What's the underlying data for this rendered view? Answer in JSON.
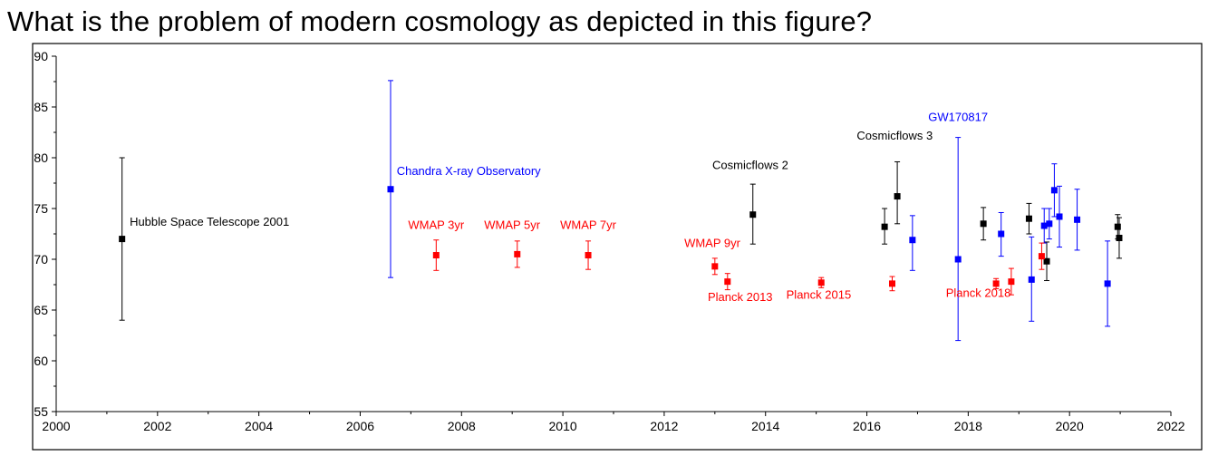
{
  "question": "What is the problem of modern cosmology as depicted in this figure?",
  "colors": {
    "black": "#000000",
    "blue": "#0000ff",
    "red": "#ff0000"
  },
  "chart_data": {
    "type": "scatter",
    "title": "",
    "xlabel": "",
    "ylabel": "",
    "xlim": [
      2000,
      2022
    ],
    "ylim": [
      55,
      90
    ],
    "x_ticks": [
      2000,
      2002,
      2004,
      2006,
      2008,
      2010,
      2012,
      2014,
      2016,
      2018,
      2020,
      2022
    ],
    "y_ticks": [
      55,
      60,
      65,
      70,
      75,
      80,
      85,
      90
    ],
    "grid": false,
    "series": [
      {
        "color": "#000000",
        "points": [
          {
            "x": 2001.3,
            "y": 72.0,
            "lo": 64.0,
            "hi": 80.0
          },
          {
            "x": 2013.75,
            "y": 74.4,
            "lo": 71.5,
            "hi": 77.4
          },
          {
            "x": 2016.35,
            "y": 73.2,
            "lo": 71.5,
            "hi": 75.0
          },
          {
            "x": 2016.6,
            "y": 76.2,
            "lo": 73.5,
            "hi": 79.6
          },
          {
            "x": 2018.3,
            "y": 73.5,
            "lo": 71.9,
            "hi": 75.1
          },
          {
            "x": 2019.2,
            "y": 74.0,
            "lo": 72.5,
            "hi": 75.5
          },
          {
            "x": 2019.55,
            "y": 69.8,
            "lo": 67.9,
            "hi": 71.7
          },
          {
            "x": 2020.95,
            "y": 73.2,
            "lo": 72.0,
            "hi": 74.4
          },
          {
            "x": 2020.98,
            "y": 72.1,
            "lo": 70.1,
            "hi": 74.1
          }
        ]
      },
      {
        "color": "#0000ff",
        "points": [
          {
            "x": 2006.6,
            "y": 76.9,
            "lo": 68.2,
            "hi": 87.6
          },
          {
            "x": 2016.9,
            "y": 71.9,
            "lo": 68.9,
            "hi": 74.3
          },
          {
            "x": 2017.8,
            "y": 70.0,
            "lo": 62.0,
            "hi": 82.0
          },
          {
            "x": 2018.65,
            "y": 72.5,
            "lo": 70.3,
            "hi": 74.6
          },
          {
            "x": 2019.25,
            "y": 68.0,
            "lo": 63.9,
            "hi": 72.2
          },
          {
            "x": 2019.5,
            "y": 73.3,
            "lo": 71.6,
            "hi": 75.0
          },
          {
            "x": 2019.6,
            "y": 73.5,
            "lo": 72.0,
            "hi": 75.0
          },
          {
            "x": 2019.7,
            "y": 76.8,
            "lo": 74.2,
            "hi": 79.4
          },
          {
            "x": 2019.8,
            "y": 74.2,
            "lo": 71.2,
            "hi": 77.2
          },
          {
            "x": 2020.15,
            "y": 73.9,
            "lo": 70.9,
            "hi": 76.9
          },
          {
            "x": 2020.75,
            "y": 67.6,
            "lo": 63.4,
            "hi": 71.8
          }
        ]
      },
      {
        "color": "#ff0000",
        "points": [
          {
            "x": 2007.5,
            "y": 70.4,
            "lo": 68.9,
            "hi": 71.9
          },
          {
            "x": 2009.1,
            "y": 70.5,
            "lo": 69.2,
            "hi": 71.8
          },
          {
            "x": 2010.5,
            "y": 70.4,
            "lo": 69.0,
            "hi": 71.8
          },
          {
            "x": 2013.0,
            "y": 69.3,
            "lo": 68.5,
            "hi": 70.1
          },
          {
            "x": 2013.25,
            "y": 67.8,
            "lo": 67.0,
            "hi": 68.6
          },
          {
            "x": 2015.1,
            "y": 67.7,
            "lo": 67.2,
            "hi": 68.2
          },
          {
            "x": 2016.5,
            "y": 67.6,
            "lo": 66.9,
            "hi": 68.3
          },
          {
            "x": 2018.55,
            "y": 67.6,
            "lo": 67.1,
            "hi": 68.1
          },
          {
            "x": 2018.85,
            "y": 67.8,
            "lo": 66.5,
            "hi": 69.1
          },
          {
            "x": 2019.45,
            "y": 70.3,
            "lo": 69.0,
            "hi": 71.6
          }
        ]
      }
    ],
    "annotations": [
      {
        "text": "Hubble Space Telescope 2001",
        "x": 2001.45,
        "y": 73.3,
        "color": "#000000",
        "anchor": "start"
      },
      {
        "text": "Chandra X-ray Observatory",
        "x": 2006.72,
        "y": 78.3,
        "color": "#0000ff",
        "anchor": "start"
      },
      {
        "text": "WMAP 3yr",
        "x": 2007.5,
        "y": 73.0,
        "color": "#ff0000",
        "anchor": "middle"
      },
      {
        "text": "WMAP 5yr",
        "x": 2009.0,
        "y": 73.0,
        "color": "#ff0000",
        "anchor": "middle"
      },
      {
        "text": "WMAP 7yr",
        "x": 2010.5,
        "y": 73.0,
        "color": "#ff0000",
        "anchor": "middle"
      },
      {
        "text": "Cosmicflows 2",
        "x": 2013.7,
        "y": 78.9,
        "color": "#000000",
        "anchor": "middle"
      },
      {
        "text": "WMAP 9yr",
        "x": 2012.95,
        "y": 71.2,
        "color": "#ff0000",
        "anchor": "middle"
      },
      {
        "text": "Planck 2013",
        "x": 2013.5,
        "y": 65.9,
        "color": "#ff0000",
        "anchor": "middle"
      },
      {
        "text": "Planck 2015",
        "x": 2015.05,
        "y": 66.1,
        "color": "#ff0000",
        "anchor": "middle"
      },
      {
        "text": "Cosmicflows 3",
        "x": 2016.55,
        "y": 81.8,
        "color": "#000000",
        "anchor": "middle"
      },
      {
        "text": "GW170817",
        "x": 2017.8,
        "y": 83.6,
        "color": "#0000ff",
        "anchor": "middle"
      },
      {
        "text": "Planck 2018",
        "x": 2018.2,
        "y": 66.3,
        "color": "#ff0000",
        "anchor": "middle"
      }
    ]
  }
}
